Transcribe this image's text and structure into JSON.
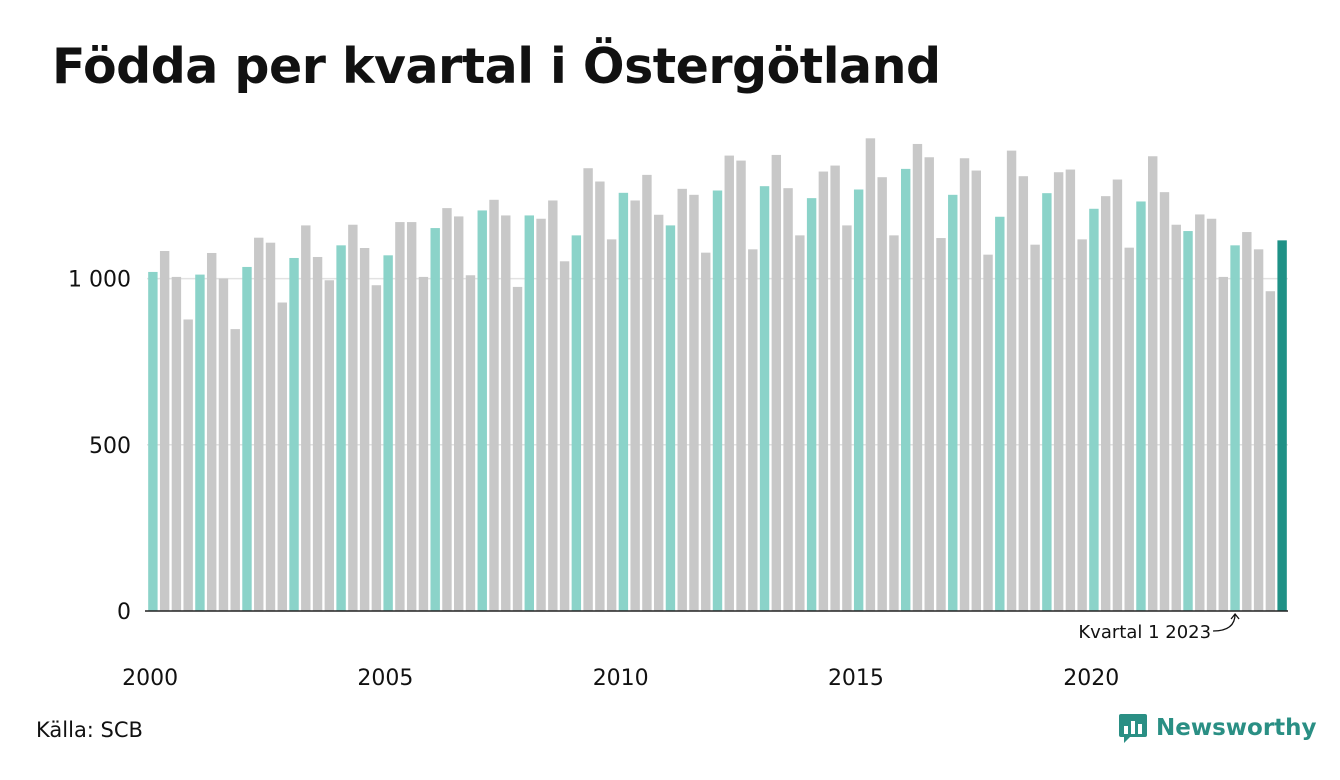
{
  "header": {
    "title": "Födda per kvartal i Östergötland"
  },
  "footer": {
    "source": "Källa: SCB",
    "brand": "Newsworthy"
  },
  "colors": {
    "q1": "#8bd3c9",
    "other": "#c8c8c8",
    "highlight": "#1e9186",
    "axis": "#222222",
    "grid": "#e2e2e2",
    "brand": "#2a8f84"
  },
  "chart_data": {
    "type": "bar",
    "title": "Födda per kvartal i Östergötland",
    "xlabel": "",
    "ylabel": "",
    "ylim": [
      0,
      1450
    ],
    "y_ticks": [
      0,
      500,
      1000
    ],
    "y_tick_labels": [
      "0",
      "500",
      "1 000"
    ],
    "x_tick_labels": [
      "2000",
      "2005",
      "2010",
      "2015",
      "2020"
    ],
    "start_year": 2000,
    "start_quarter": 1,
    "grid": "horizontal",
    "legend": "none",
    "annotation": {
      "text": "Kvartal 1 2023",
      "target_period": "2023 Q1"
    },
    "values": [
      1020,
      1083,
      1005,
      877,
      1012,
      1077,
      1000,
      848,
      1035,
      1123,
      1108,
      928,
      1062,
      1160,
      1065,
      995,
      1100,
      1162,
      1092,
      980,
      1070,
      1170,
      1170,
      1005,
      1152,
      1212,
      1187,
      1010,
      1205,
      1237,
      1190,
      975,
      1190,
      1180,
      1235,
      1052,
      1130,
      1332,
      1292,
      1118,
      1258,
      1235,
      1312,
      1192,
      1160,
      1270,
      1252,
      1078,
      1265,
      1370,
      1355,
      1088,
      1278,
      1372,
      1272,
      1130,
      1242,
      1322,
      1340,
      1160,
      1268,
      1422,
      1305,
      1130,
      1330,
      1405,
      1365,
      1122,
      1252,
      1362,
      1325,
      1072,
      1186,
      1385,
      1308,
      1102,
      1257,
      1320,
      1328,
      1118,
      1210,
      1248,
      1298,
      1093,
      1232,
      1368,
      1260,
      1162,
      1143,
      1193,
      1180,
      1005,
      1100,
      1140,
      1088,
      962,
      1115
    ]
  }
}
